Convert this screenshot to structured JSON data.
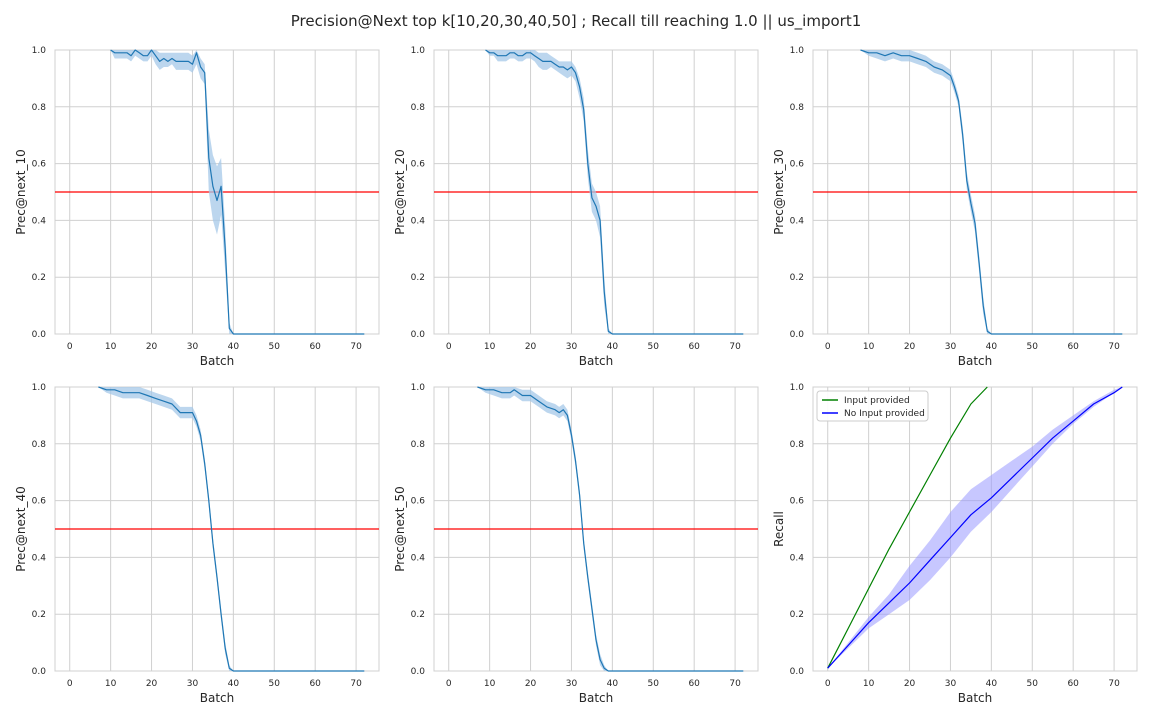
{
  "figure": {
    "title": "Precision@Next top k[10,20,30,40,50] ; Recall till reaching 1.0 || us_import1"
  },
  "colors": {
    "background": "#ffffff",
    "grid": "#d0d0d0",
    "prec_line": "#1f77b4",
    "prec_band": "#a6c8e8",
    "threshold": "#ff0000",
    "input_provided": "#008000",
    "no_input": "#0000ff",
    "no_input_band": "#9999ff"
  },
  "chart_data": [
    {
      "type": "line",
      "xlabel": "Batch",
      "ylabel": "Prec@next_10",
      "xlim": [
        -3.6,
        75.6
      ],
      "ylim": [
        0,
        1
      ],
      "xticks": [
        0,
        10,
        20,
        30,
        40,
        50,
        60,
        70
      ],
      "yticks": [
        0.0,
        0.2,
        0.4,
        0.6,
        0.8,
        1.0
      ],
      "grid": true,
      "hline": 0.5,
      "series": [
        {
          "x": [
            10,
            11,
            13,
            14,
            15,
            16,
            17,
            18,
            19,
            20,
            21,
            22,
            23,
            24,
            25,
            26,
            27,
            28,
            29,
            30,
            31,
            32,
            33,
            34,
            35,
            36,
            37,
            38,
            39,
            40,
            72
          ],
          "y": [
            1.0,
            0.99,
            0.99,
            0.99,
            0.98,
            1.0,
            0.99,
            0.98,
            0.98,
            1.0,
            0.98,
            0.96,
            0.97,
            0.96,
            0.97,
            0.96,
            0.96,
            0.96,
            0.96,
            0.95,
            0.99,
            0.94,
            0.92,
            0.62,
            0.52,
            0.47,
            0.52,
            0.3,
            0.02,
            0.0,
            0.0
          ],
          "lower": [
            1.0,
            0.97,
            0.97,
            0.97,
            0.96,
            0.98,
            0.97,
            0.96,
            0.96,
            0.98,
            0.95,
            0.93,
            0.94,
            0.94,
            0.95,
            0.93,
            0.93,
            0.93,
            0.93,
            0.92,
            0.95,
            0.9,
            0.88,
            0.5,
            0.4,
            0.35,
            0.42,
            0.22,
            0.0,
            0.0,
            0.0
          ],
          "upper": [
            1.0,
            1.0,
            1.0,
            1.0,
            1.0,
            1.0,
            1.0,
            1.0,
            1.0,
            1.0,
            1.0,
            0.99,
            0.99,
            0.99,
            0.99,
            0.99,
            0.99,
            0.99,
            0.99,
            0.98,
            1.0,
            0.97,
            0.95,
            0.72,
            0.63,
            0.59,
            0.62,
            0.38,
            0.04,
            0.0,
            0.0
          ]
        }
      ]
    },
    {
      "type": "line",
      "xlabel": "Batch",
      "ylabel": "Prec@next_20",
      "xlim": [
        -3.6,
        75.6
      ],
      "ylim": [
        0,
        1
      ],
      "xticks": [
        0,
        10,
        20,
        30,
        40,
        50,
        60,
        70
      ],
      "yticks": [
        0.0,
        0.2,
        0.4,
        0.6,
        0.8,
        1.0
      ],
      "grid": true,
      "hline": 0.5,
      "series": [
        {
          "x": [
            9,
            10,
            11,
            12,
            13,
            14,
            15,
            16,
            17,
            18,
            19,
            20,
            21,
            22,
            23,
            24,
            25,
            26,
            27,
            28,
            29,
            30,
            31,
            32,
            33,
            34,
            35,
            36,
            37,
            38,
            39,
            40,
            72
          ],
          "y": [
            1.0,
            0.99,
            0.99,
            0.98,
            0.98,
            0.98,
            0.99,
            0.99,
            0.98,
            0.98,
            0.99,
            0.99,
            0.98,
            0.97,
            0.96,
            0.96,
            0.96,
            0.95,
            0.94,
            0.94,
            0.93,
            0.94,
            0.92,
            0.87,
            0.79,
            0.6,
            0.48,
            0.45,
            0.4,
            0.15,
            0.01,
            0.0,
            0.0
          ],
          "lower": [
            1.0,
            0.98,
            0.98,
            0.96,
            0.96,
            0.96,
            0.97,
            0.97,
            0.96,
            0.96,
            0.97,
            0.97,
            0.96,
            0.94,
            0.93,
            0.93,
            0.94,
            0.93,
            0.92,
            0.91,
            0.9,
            0.91,
            0.89,
            0.83,
            0.75,
            0.55,
            0.43,
            0.4,
            0.34,
            0.1,
            0.0,
            0.0,
            0.0
          ],
          "upper": [
            1.0,
            1.0,
            1.0,
            1.0,
            1.0,
            1.0,
            1.0,
            1.0,
            1.0,
            1.0,
            1.0,
            1.0,
            1.0,
            0.99,
            0.99,
            0.99,
            0.98,
            0.97,
            0.96,
            0.96,
            0.96,
            0.96,
            0.94,
            0.9,
            0.83,
            0.65,
            0.53,
            0.5,
            0.45,
            0.2,
            0.02,
            0.0,
            0.0
          ]
        }
      ]
    },
    {
      "type": "line",
      "xlabel": "Batch",
      "ylabel": "Prec@next_30",
      "xlim": [
        -3.6,
        75.6
      ],
      "ylim": [
        0,
        1
      ],
      "xticks": [
        0,
        10,
        20,
        30,
        40,
        50,
        60,
        70
      ],
      "yticks": [
        0.0,
        0.2,
        0.4,
        0.6,
        0.8,
        1.0
      ],
      "grid": true,
      "hline": 0.5,
      "series": [
        {
          "x": [
            8,
            10,
            12,
            14,
            16,
            18,
            20,
            22,
            24,
            26,
            28,
            30,
            31,
            32,
            33,
            34,
            35,
            36,
            37,
            38,
            39,
            40,
            72
          ],
          "y": [
            1.0,
            0.99,
            0.99,
            0.98,
            0.99,
            0.98,
            0.98,
            0.97,
            0.96,
            0.94,
            0.93,
            0.91,
            0.87,
            0.82,
            0.7,
            0.54,
            0.46,
            0.39,
            0.25,
            0.1,
            0.01,
            0.0,
            0.0
          ],
          "lower": [
            1.0,
            0.98,
            0.97,
            0.96,
            0.97,
            0.96,
            0.96,
            0.95,
            0.94,
            0.92,
            0.91,
            0.89,
            0.85,
            0.8,
            0.67,
            0.51,
            0.43,
            0.36,
            0.22,
            0.07,
            0.0,
            0.0,
            0.0
          ],
          "upper": [
            1.0,
            1.0,
            1.0,
            1.0,
            1.0,
            1.0,
            1.0,
            0.99,
            0.98,
            0.96,
            0.95,
            0.93,
            0.89,
            0.84,
            0.73,
            0.57,
            0.49,
            0.42,
            0.28,
            0.13,
            0.02,
            0.0,
            0.0
          ]
        }
      ]
    },
    {
      "type": "line",
      "xlabel": "Batch",
      "ylabel": "Prec@next_40",
      "xlim": [
        -3.6,
        75.6
      ],
      "ylim": [
        0,
        1
      ],
      "xticks": [
        0,
        10,
        20,
        30,
        40,
        50,
        60,
        70
      ],
      "yticks": [
        0.0,
        0.2,
        0.4,
        0.6,
        0.8,
        1.0
      ],
      "grid": true,
      "hline": 0.5,
      "series": [
        {
          "x": [
            7,
            9,
            11,
            13,
            15,
            17,
            19,
            21,
            23,
            25,
            27,
            28,
            30,
            31,
            32,
            33,
            34,
            35,
            36,
            37,
            38,
            39,
            40,
            72
          ],
          "y": [
            1.0,
            0.99,
            0.99,
            0.98,
            0.98,
            0.98,
            0.97,
            0.96,
            0.95,
            0.94,
            0.91,
            0.91,
            0.91,
            0.88,
            0.83,
            0.73,
            0.6,
            0.45,
            0.33,
            0.2,
            0.08,
            0.01,
            0.0,
            0.0
          ],
          "lower": [
            1.0,
            0.98,
            0.97,
            0.96,
            0.96,
            0.96,
            0.95,
            0.94,
            0.93,
            0.92,
            0.89,
            0.89,
            0.89,
            0.86,
            0.81,
            0.71,
            0.58,
            0.43,
            0.31,
            0.18,
            0.06,
            0.0,
            0.0,
            0.0
          ],
          "upper": [
            1.0,
            1.0,
            1.0,
            1.0,
            1.0,
            1.0,
            0.99,
            0.98,
            0.97,
            0.96,
            0.93,
            0.93,
            0.93,
            0.9,
            0.85,
            0.75,
            0.62,
            0.47,
            0.35,
            0.22,
            0.1,
            0.02,
            0.0,
            0.0
          ]
        }
      ]
    },
    {
      "type": "line",
      "xlabel": "Batch",
      "ylabel": "Prec@next_50",
      "xlim": [
        -3.6,
        75.6
      ],
      "ylim": [
        0,
        1
      ],
      "xticks": [
        0,
        10,
        20,
        30,
        40,
        50,
        60,
        70
      ],
      "yticks": [
        0.0,
        0.2,
        0.4,
        0.6,
        0.8,
        1.0
      ],
      "grid": true,
      "hline": 0.5,
      "series": [
        {
          "x": [
            7,
            9,
            11,
            13,
            15,
            16,
            18,
            20,
            22,
            24,
            26,
            27,
            28,
            29,
            30,
            31,
            32,
            33,
            34,
            35,
            36,
            37,
            38,
            39,
            40,
            72
          ],
          "y": [
            1.0,
            0.99,
            0.99,
            0.98,
            0.98,
            0.99,
            0.97,
            0.97,
            0.95,
            0.93,
            0.92,
            0.91,
            0.92,
            0.9,
            0.83,
            0.74,
            0.62,
            0.45,
            0.33,
            0.22,
            0.11,
            0.04,
            0.01,
            0.0,
            0.0,
            0.0
          ],
          "lower": [
            1.0,
            0.98,
            0.97,
            0.96,
            0.96,
            0.97,
            0.95,
            0.95,
            0.93,
            0.91,
            0.9,
            0.89,
            0.9,
            0.88,
            0.81,
            0.72,
            0.6,
            0.43,
            0.31,
            0.2,
            0.09,
            0.02,
            0.0,
            0.0,
            0.0,
            0.0
          ],
          "upper": [
            1.0,
            1.0,
            1.0,
            1.0,
            1.0,
            1.0,
            0.99,
            0.99,
            0.97,
            0.95,
            0.94,
            0.93,
            0.94,
            0.92,
            0.85,
            0.76,
            0.64,
            0.47,
            0.35,
            0.24,
            0.13,
            0.06,
            0.02,
            0.0,
            0.0,
            0.0
          ]
        }
      ]
    },
    {
      "type": "line",
      "xlabel": "Batch",
      "ylabel": "Recall",
      "xlim": [
        -3.6,
        75.6
      ],
      "ylim": [
        0,
        1
      ],
      "xticks": [
        0,
        10,
        20,
        30,
        40,
        50,
        60,
        70
      ],
      "yticks": [
        0.0,
        0.2,
        0.4,
        0.6,
        0.8,
        1.0
      ],
      "grid": true,
      "legend": "top-left",
      "series": [
        {
          "name": "Input provided",
          "x": [
            0,
            5,
            10,
            15,
            20,
            25,
            30,
            35,
            39
          ],
          "y": [
            0.01,
            0.15,
            0.29,
            0.43,
            0.56,
            0.69,
            0.82,
            0.94,
            1.0
          ]
        },
        {
          "name": "No Input provided",
          "x": [
            0,
            5,
            10,
            15,
            20,
            25,
            30,
            35,
            40,
            45,
            50,
            55,
            60,
            65,
            70,
            72
          ],
          "y": [
            0.01,
            0.09,
            0.17,
            0.24,
            0.31,
            0.39,
            0.47,
            0.55,
            0.61,
            0.68,
            0.75,
            0.82,
            0.88,
            0.94,
            0.98,
            1.0
          ],
          "lower": [
            0.01,
            0.08,
            0.15,
            0.2,
            0.25,
            0.32,
            0.4,
            0.49,
            0.56,
            0.64,
            0.72,
            0.8,
            0.87,
            0.93,
            0.98,
            1.0
          ],
          "upper": [
            0.01,
            0.1,
            0.19,
            0.27,
            0.37,
            0.46,
            0.56,
            0.64,
            0.69,
            0.74,
            0.79,
            0.85,
            0.9,
            0.95,
            0.99,
            1.0
          ]
        }
      ]
    }
  ]
}
